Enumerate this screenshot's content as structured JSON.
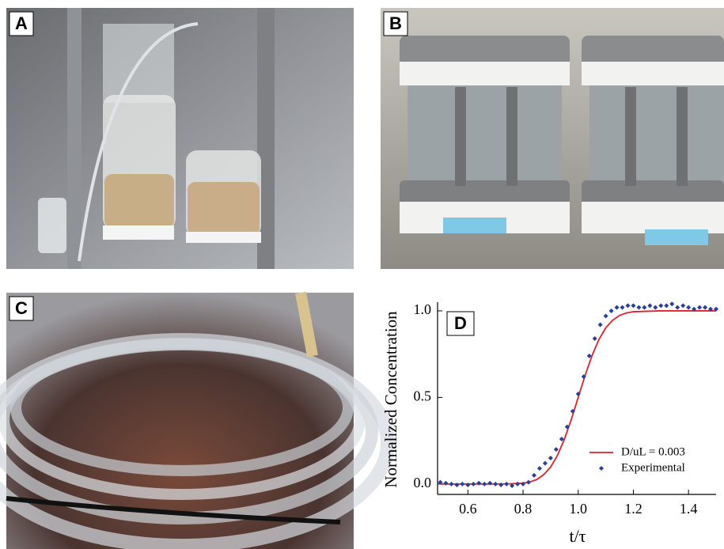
{
  "panels": [
    {
      "label": "A"
    },
    {
      "label": "B"
    },
    {
      "label": "C"
    }
  ],
  "chart_data": {
    "type": "line",
    "panel_label": "D",
    "x_label": "t/τ",
    "y_label": "Normalized Concentration",
    "xlim": [
      0.49,
      1.5
    ],
    "xticks": [
      0.6,
      0.8,
      {
        "value": 1,
        "label": "1.0"
      },
      1.2,
      1.4
    ],
    "ylim": [
      -0.06,
      1.05
    ],
    "yticks": [
      {
        "value": 0,
        "label": "0.0"
      },
      0.5,
      {
        "value": 1,
        "label": "1.0"
      }
    ],
    "grid": false,
    "legend": "lower right",
    "series": [
      {
        "name": "D/uL = 0.003",
        "type": "line",
        "color": "#e0202a",
        "x": [
          0.5,
          0.6,
          0.7,
          0.75,
          0.8,
          0.825,
          0.85,
          0.875,
          0.9,
          0.925,
          0.95,
          0.975,
          1.0,
          1.025,
          1.05,
          1.075,
          1.1,
          1.125,
          1.15,
          1.175,
          1.2,
          1.3,
          1.4,
          1.5
        ],
        "values": [
          0,
          0,
          0,
          0.001,
          0.005,
          0.012,
          0.026,
          0.054,
          0.098,
          0.166,
          0.259,
          0.373,
          0.5,
          0.627,
          0.741,
          0.834,
          0.902,
          0.946,
          0.974,
          0.988,
          0.995,
          1,
          1,
          1
        ]
      },
      {
        "name": "Experimental",
        "type": "scatter",
        "color": "#2a3f9a",
        "x": [
          0.5,
          0.52,
          0.54,
          0.56,
          0.58,
          0.6,
          0.62,
          0.64,
          0.66,
          0.68,
          0.7,
          0.72,
          0.74,
          0.76,
          0.78,
          0.8,
          0.82,
          0.84,
          0.86,
          0.88,
          0.9,
          0.92,
          0.94,
          0.96,
          0.98,
          1.0,
          1.02,
          1.04,
          1.06,
          1.08,
          1.1,
          1.12,
          1.14,
          1.16,
          1.18,
          1.2,
          1.22,
          1.24,
          1.26,
          1.28,
          1.3,
          1.32,
          1.34,
          1.36,
          1.38,
          1.4,
          1.42,
          1.44,
          1.46,
          1.48,
          1.5
        ],
        "values": [
          0.01,
          0.005,
          0,
          -0.005,
          0,
          -0.005,
          0,
          0.005,
          0,
          0.005,
          0,
          -0.005,
          0,
          -0.01,
          0,
          0,
          0.01,
          0.05,
          0.09,
          0.12,
          0.15,
          0.2,
          0.26,
          0.33,
          0.42,
          0.52,
          0.62,
          0.74,
          0.84,
          0.92,
          0.97,
          1,
          1.02,
          1.02,
          1.03,
          1.03,
          1.02,
          1.02,
          1.03,
          1.02,
          1.03,
          1.03,
          1.04,
          1.02,
          1.03,
          1.02,
          1.01,
          1.02,
          1.02,
          1.01,
          1.01
        ]
      }
    ]
  }
}
